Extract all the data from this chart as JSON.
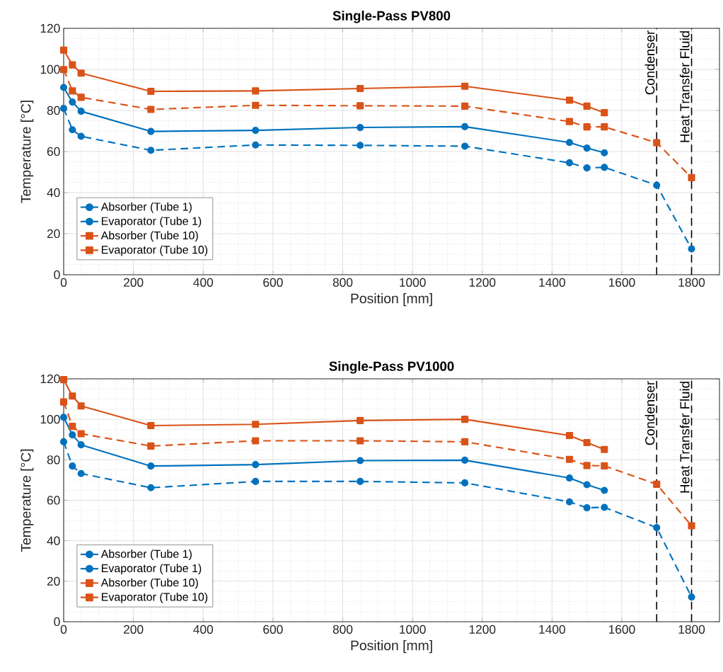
{
  "chart_data": [
    {
      "type": "line",
      "title": "Single-Pass PV800",
      "xlabel": "Position [mm]",
      "ylabel": "Temperature [°C]",
      "xlim": [
        0,
        1880
      ],
      "ylim": [
        0,
        120
      ],
      "xticks": [
        0,
        200,
        400,
        600,
        800,
        1000,
        1200,
        1400,
        1600,
        1800
      ],
      "yticks": [
        0,
        20,
        40,
        60,
        80,
        100,
        120
      ],
      "grid": true,
      "legend": "bottom left",
      "ref_lines": [
        {
          "axis": "x",
          "value": 1700,
          "label": "Condenser",
          "color": "#000000",
          "line_style": "dashed"
        },
        {
          "axis": "x",
          "value": 1800,
          "label": "Heat Transfer Fluid",
          "color": "#000000",
          "line_style": "dashed"
        }
      ],
      "series": [
        {
          "name": "Absorber (Tube 1)",
          "color": "#0072bd",
          "marker": "circle",
          "line_style": "solid",
          "x": [
            0,
            25,
            50,
            250,
            550,
            850,
            1150,
            1450,
            1500,
            1550
          ],
          "values": [
            91.2,
            84.1,
            79.6,
            69.8,
            70.3,
            71.7,
            72.1,
            64.4,
            61.7,
            59.4
          ]
        },
        {
          "name": "Evaporator (Tube 1)",
          "color": "#0072bd",
          "marker": "circle",
          "line_style": "dashed",
          "x": [
            0,
            25,
            50,
            250,
            550,
            850,
            1150,
            1450,
            1500,
            1550,
            1700,
            1800
          ],
          "values": [
            81.0,
            70.6,
            67.4,
            60.6,
            63.2,
            63.0,
            62.6,
            54.5,
            52.0,
            52.3,
            43.6,
            12.6
          ]
        },
        {
          "name": "Absorber (Tube 10)",
          "color": "#d95319",
          "marker": "square",
          "line_style": "solid",
          "x": [
            0,
            25,
            50,
            250,
            550,
            850,
            1150,
            1450,
            1500,
            1550
          ],
          "values": [
            109.4,
            102.2,
            98.2,
            89.3,
            89.5,
            90.7,
            91.8,
            85.0,
            82.1,
            78.9
          ]
        },
        {
          "name": "Evaporator (Tube 10)",
          "color": "#d95319",
          "marker": "square",
          "line_style": "dashed",
          "x": [
            0,
            25,
            50,
            250,
            550,
            850,
            1150,
            1450,
            1500,
            1550,
            1700,
            1800
          ],
          "values": [
            99.9,
            89.5,
            86.4,
            80.5,
            82.5,
            82.3,
            82.1,
            74.6,
            72.0,
            72.0,
            64.3,
            47.3
          ]
        }
      ]
    },
    {
      "type": "line",
      "title": "Single-Pass PV1000",
      "xlabel": "Position [mm]",
      "ylabel": "Temperature [°C]",
      "xlim": [
        0,
        1880
      ],
      "ylim": [
        0,
        120
      ],
      "xticks": [
        0,
        200,
        400,
        600,
        800,
        1000,
        1200,
        1400,
        1600,
        1800
      ],
      "yticks": [
        0,
        20,
        40,
        60,
        80,
        100,
        120
      ],
      "grid": true,
      "legend": "bottom left",
      "ref_lines": [
        {
          "axis": "x",
          "value": 1700,
          "label": "Condenser",
          "color": "#000000",
          "line_style": "dashed"
        },
        {
          "axis": "x",
          "value": 1800,
          "label": "Heat Transfer Fluid",
          "color": "#000000",
          "line_style": "dashed"
        }
      ],
      "series": [
        {
          "name": "Absorber (Tube 1)",
          "color": "#0072bd",
          "marker": "circle",
          "line_style": "solid",
          "x": [
            0,
            25,
            50,
            250,
            550,
            850,
            1150,
            1450,
            1500,
            1550
          ],
          "values": [
            101.0,
            92.3,
            87.4,
            76.9,
            77.6,
            79.6,
            79.8,
            71.0,
            67.7,
            64.9
          ]
        },
        {
          "name": "Evaporator (Tube 1)",
          "color": "#0072bd",
          "marker": "circle",
          "line_style": "dashed",
          "x": [
            0,
            25,
            50,
            250,
            550,
            850,
            1150,
            1450,
            1500,
            1550,
            1700,
            1800
          ],
          "values": [
            88.9,
            76.9,
            73.2,
            66.2,
            69.3,
            69.3,
            68.6,
            59.2,
            56.3,
            56.5,
            46.5,
            12.2
          ]
        },
        {
          "name": "Absorber (Tube 10)",
          "color": "#d95319",
          "marker": "square",
          "line_style": "solid",
          "x": [
            0,
            25,
            50,
            250,
            550,
            850,
            1150,
            1450,
            1500,
            1550
          ],
          "values": [
            119.6,
            111.5,
            106.6,
            96.9,
            97.5,
            99.4,
            100.0,
            92.0,
            88.5,
            85.1
          ]
        },
        {
          "name": "Evaporator (Tube 10)",
          "color": "#d95319",
          "marker": "square",
          "line_style": "dashed",
          "x": [
            0,
            25,
            50,
            250,
            550,
            850,
            1150,
            1450,
            1500,
            1550,
            1700,
            1800
          ],
          "values": [
            108.6,
            96.5,
            92.9,
            86.8,
            89.4,
            89.4,
            88.9,
            80.2,
            77.2,
            77.0,
            67.9,
            47.4
          ]
        }
      ]
    }
  ]
}
